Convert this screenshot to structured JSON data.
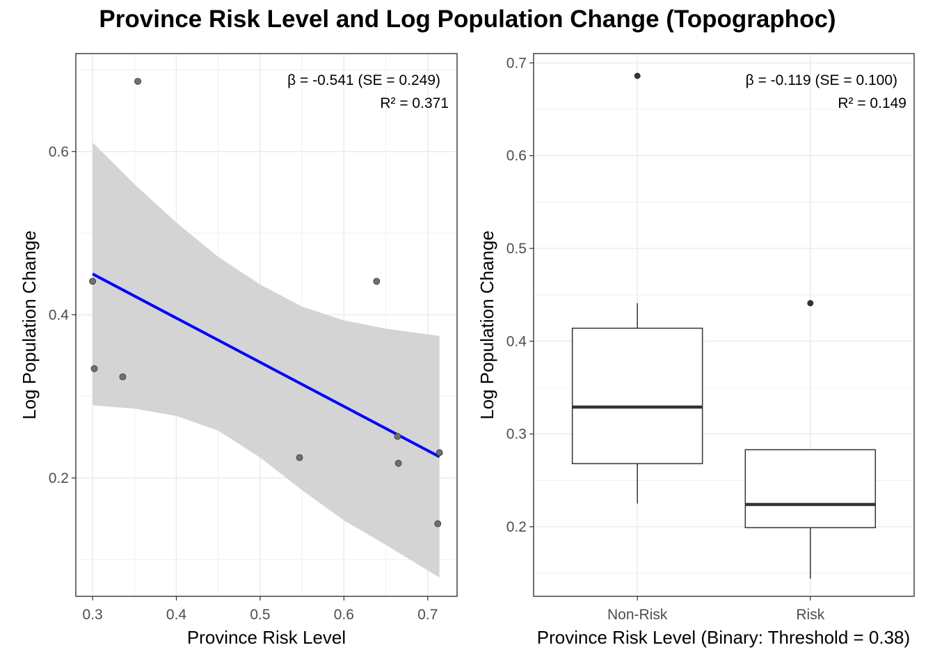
{
  "title": "Province Risk Level and Log Population Change (Topographoc)",
  "colors": {
    "regression_line": "#0000ff",
    "ribbon": "#d4d4d4",
    "points": "#707070",
    "box": "#333333",
    "grid": "#ebebeb"
  },
  "chart_data": [
    {
      "type": "scatter",
      "xlabel": "Province Risk Level",
      "ylabel": "Log Population Change",
      "xlim": [
        0.28,
        0.735
      ],
      "ylim": [
        0.055,
        0.72
      ],
      "xticks": [
        0.3,
        0.4,
        0.5,
        0.6,
        0.7
      ],
      "xtick_labels": [
        "0.3",
        "0.4",
        "0.5",
        "0.6",
        "0.7"
      ],
      "yticks": [
        0.2,
        0.4,
        0.6
      ],
      "ytick_labels": [
        "0.2",
        "0.4",
        "0.6"
      ],
      "grid": true,
      "points": [
        {
          "x": 0.3,
          "y": 0.441
        },
        {
          "x": 0.302,
          "y": 0.334
        },
        {
          "x": 0.336,
          "y": 0.324
        },
        {
          "x": 0.354,
          "y": 0.686
        },
        {
          "x": 0.547,
          "y": 0.225
        },
        {
          "x": 0.639,
          "y": 0.441
        },
        {
          "x": 0.664,
          "y": 0.251
        },
        {
          "x": 0.665,
          "y": 0.218
        },
        {
          "x": 0.712,
          "y": 0.144
        },
        {
          "x": 0.714,
          "y": 0.231
        }
      ],
      "fit_line": {
        "x": [
          0.3,
          0.714
        ],
        "y": [
          0.45,
          0.226
        ]
      },
      "confidence_band": {
        "x": [
          0.3,
          0.35,
          0.4,
          0.45,
          0.5,
          0.55,
          0.6,
          0.65,
          0.714
        ],
        "upper": [
          0.611,
          0.56,
          0.513,
          0.471,
          0.437,
          0.41,
          0.393,
          0.383,
          0.374
        ],
        "lower": [
          0.289,
          0.285,
          0.276,
          0.258,
          0.225,
          0.185,
          0.148,
          0.118,
          0.078
        ]
      },
      "annotation": {
        "line1": "β = -0.541 (SE = 0.249)",
        "line2": "R² = 0.371"
      }
    },
    {
      "type": "box",
      "xlabel": "Province Risk Level (Binary: Threshold = 0.38)",
      "ylabel": "Log Population Change",
      "categories": [
        "Non-Risk",
        "Risk"
      ],
      "ylim": [
        0.125,
        0.71
      ],
      "yticks": [
        0.2,
        0.3,
        0.4,
        0.5,
        0.6,
        0.7
      ],
      "ytick_labels": [
        "0.2",
        "0.3",
        "0.4",
        "0.5",
        "0.6",
        "0.7"
      ],
      "grid": true,
      "boxes": [
        {
          "category": "Non-Risk",
          "whisker_low": 0.225,
          "q1": 0.268,
          "median": 0.329,
          "q3": 0.414,
          "whisker_high": 0.441,
          "outliers": [
            0.686
          ]
        },
        {
          "category": "Risk",
          "whisker_low": 0.144,
          "q1": 0.199,
          "median": 0.224,
          "q3": 0.283,
          "whisker_high": 0.283,
          "outliers": [
            0.441
          ]
        }
      ],
      "annotation": {
        "line1": "β = -0.119 (SE = 0.100)",
        "line2": "R² = 0.149"
      }
    }
  ]
}
